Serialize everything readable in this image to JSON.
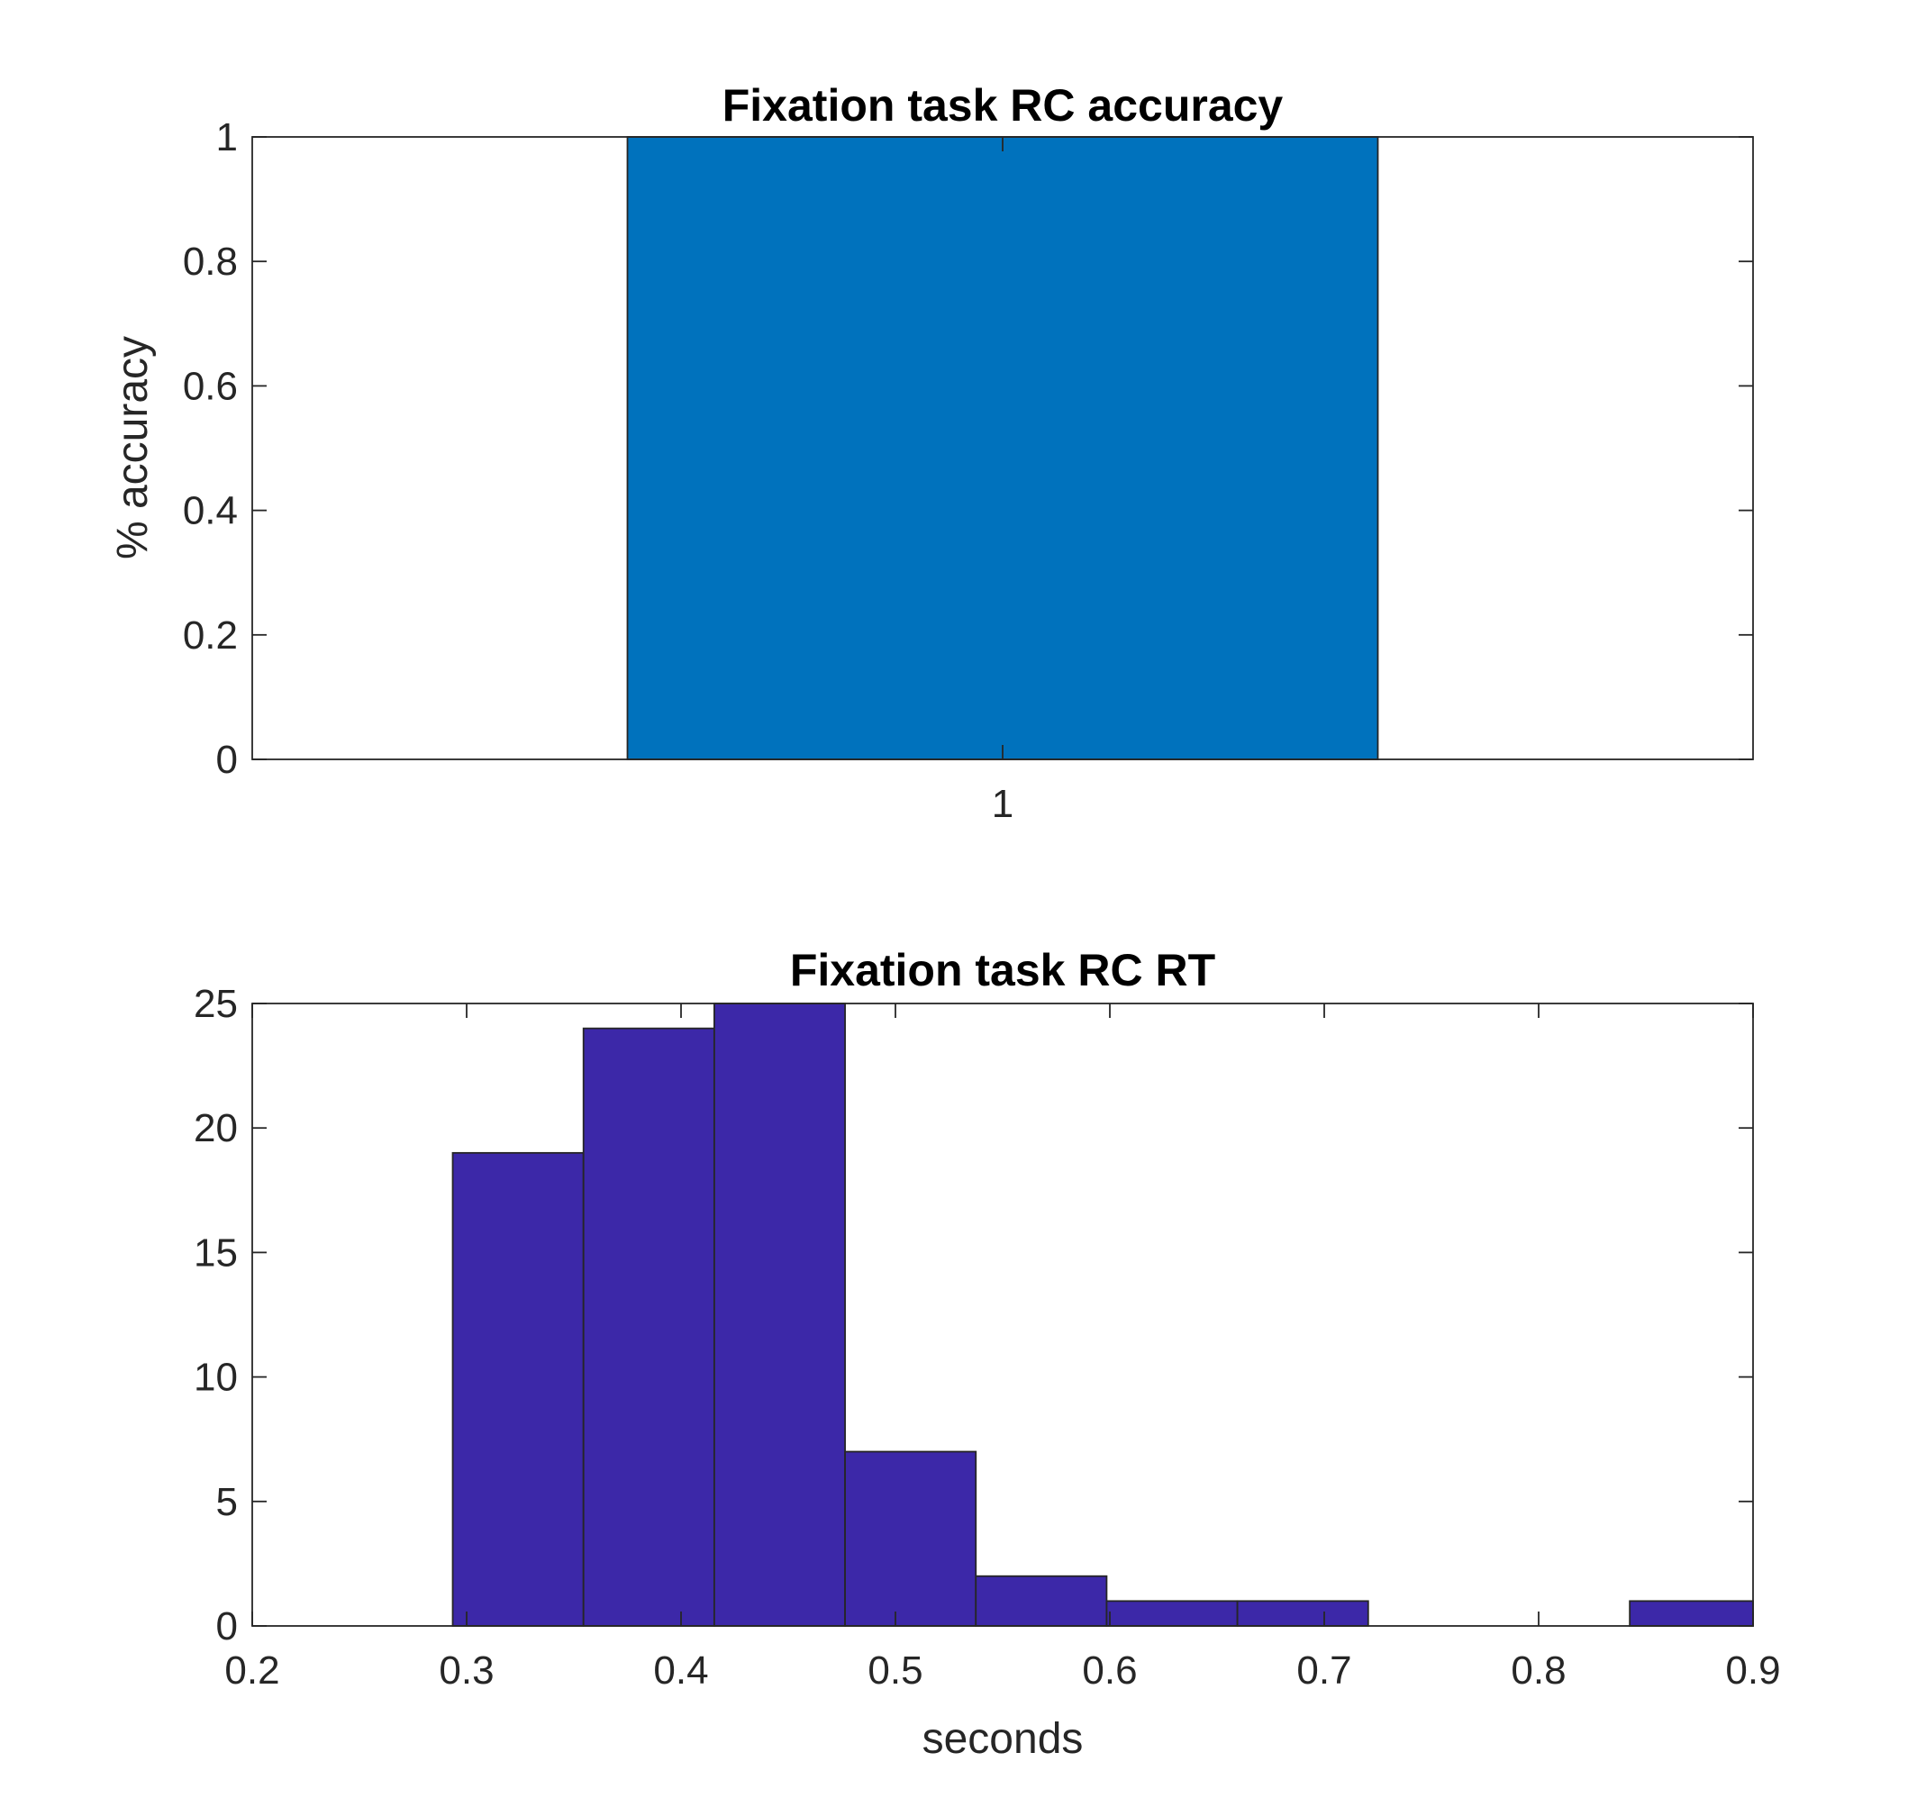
{
  "chart_data": [
    {
      "type": "bar",
      "title": "Fixation task RC accuracy",
      "xlabel": "",
      "ylabel": "% accuracy",
      "categories": [
        "1"
      ],
      "values": [
        1
      ],
      "ylim": [
        0,
        1
      ],
      "yticks": [
        0,
        0.2,
        0.4,
        0.6,
        0.8,
        1
      ],
      "ytick_labels": [
        "0",
        "0.2",
        "0.4",
        "0.6",
        "0.8",
        "1"
      ],
      "xlim": [
        0.5,
        1.5
      ],
      "bar_width": 0.5,
      "color": "#0072BD",
      "grid": false
    },
    {
      "type": "bar",
      "title": "Fixation task RC RT",
      "xlabel": "seconds",
      "ylabel": "",
      "bins": [
        {
          "start": 0.2935,
          "end": 0.3545,
          "count": 19
        },
        {
          "start": 0.3545,
          "end": 0.4155,
          "count": 24
        },
        {
          "start": 0.4155,
          "end": 0.4765,
          "count": 25
        },
        {
          "start": 0.4765,
          "end": 0.5375,
          "count": 7
        },
        {
          "start": 0.5375,
          "end": 0.5985,
          "count": 2
        },
        {
          "start": 0.5985,
          "end": 0.6595,
          "count": 1
        },
        {
          "start": 0.6595,
          "end": 0.7205,
          "count": 1
        },
        {
          "start": 0.7205,
          "end": 0.7815,
          "count": 0
        },
        {
          "start": 0.7815,
          "end": 0.8425,
          "count": 0
        },
        {
          "start": 0.8425,
          "end": 0.9035,
          "count": 1
        }
      ],
      "xlim": [
        0.2,
        0.9
      ],
      "ylim": [
        0,
        25
      ],
      "xticks": [
        0.2,
        0.3,
        0.4,
        0.5,
        0.6,
        0.7,
        0.8,
        0.9
      ],
      "xtick_labels": [
        "0.2",
        "0.3",
        "0.4",
        "0.5",
        "0.6",
        "0.7",
        "0.8",
        "0.9"
      ],
      "yticks": [
        0,
        5,
        10,
        15,
        20,
        25
      ],
      "ytick_labels": [
        "0",
        "5",
        "10",
        "15",
        "20",
        "25"
      ],
      "color": "#3C28A8",
      "grid": false
    }
  ]
}
